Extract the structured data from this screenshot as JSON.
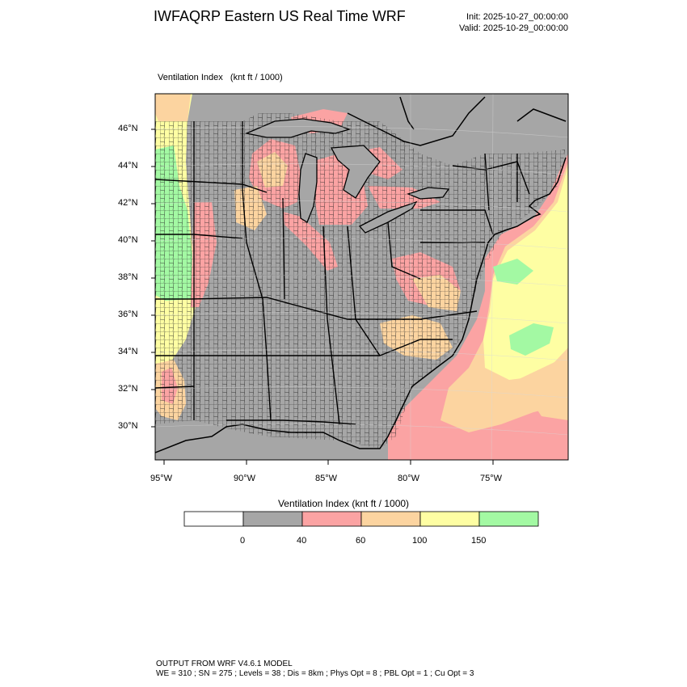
{
  "header": {
    "title": "IWFAQRP Eastern US Real Time WRF",
    "init": "Init: 2025-10-27_00:00:00",
    "valid": "Valid: 2025-10-29_00:00:00"
  },
  "field": {
    "name": "Ventilation Index",
    "units": "(knt ft / 1000)"
  },
  "map": {
    "lat_labels": [
      "46°N",
      "44°N",
      "42°N",
      "40°N",
      "38°N",
      "36°N",
      "34°N",
      "32°N",
      "30°N"
    ],
    "lon_labels": [
      "95°W",
      "90°W",
      "85°W",
      "80°W",
      "75°W"
    ]
  },
  "colorbar": {
    "title": "Ventilation Index  (knt ft / 1000)",
    "bins": [
      {
        "color": "#ffffff"
      },
      {
        "color": "#a6a6a6"
      },
      {
        "color": "#fba3a3"
      },
      {
        "color": "#fcd4a0"
      },
      {
        "color": "#fefea3"
      },
      {
        "color": "#a3f9a3"
      }
    ],
    "tick_labels": [
      "0",
      "40",
      "60",
      "100",
      "150"
    ]
  },
  "footer": {
    "line1": "OUTPUT FROM WRF V4.6.1 MODEL",
    "line2": "WE = 310 ; SN = 275 ; Levels = 38 ; Dis = 8km ; Phys Opt = 8 ; PBL Opt = 1 ; Cu Opt = 3"
  }
}
